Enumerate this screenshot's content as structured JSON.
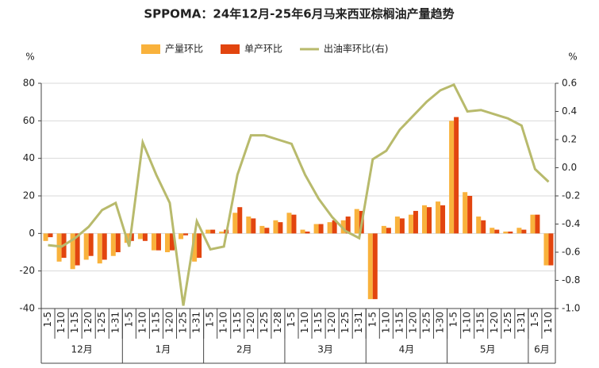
{
  "chart_data": {
    "type": "bar_line",
    "title": "SPPOMA：24年12月-25年6月马来西亚棕榈油产量趋势",
    "y_label": "%",
    "y2_label": "%",
    "groups": [
      {
        "name": "12月",
        "categories": [
          "1-5",
          "1-10",
          "1-15",
          "1-20",
          "1-25",
          "1-31"
        ]
      },
      {
        "name": "1月",
        "categories": [
          "1-5",
          "1-10",
          "1-15",
          "1-20",
          "1-25",
          "1-31"
        ]
      },
      {
        "name": "2月",
        "categories": [
          "1-5",
          "1-10",
          "1-15",
          "1-20",
          "1-25",
          "1-28"
        ]
      },
      {
        "name": "3月",
        "categories": [
          "1-5",
          "1-10",
          "1-15",
          "1-20",
          "1-25",
          "1-31"
        ]
      },
      {
        "name": "4月",
        "categories": [
          "1-5",
          "1-10",
          "1-15",
          "1-20",
          "1-25",
          "1-30"
        ]
      },
      {
        "name": "5月",
        "categories": [
          "1-5",
          "1-10",
          "1-15",
          "1-20",
          "1-25",
          "1-31"
        ]
      },
      {
        "name": "6月",
        "categories": [
          "1-5",
          "1-10"
        ]
      }
    ],
    "series": [
      {
        "name": "产量环比",
        "type": "bar",
        "color": "#f9b23c",
        "values": [
          -4,
          -15,
          -19,
          -14,
          -16,
          -12,
          -5,
          -3,
          -9,
          -10,
          -3,
          -15,
          2,
          1,
          11,
          9,
          4,
          7,
          11,
          2,
          5,
          6,
          7,
          13,
          -35,
          4,
          9,
          10,
          15,
          17,
          60,
          22,
          9,
          3,
          1,
          3,
          10,
          -17
        ]
      },
      {
        "name": "单产环比",
        "type": "bar",
        "color": "#e2450f",
        "values": [
          -2,
          -13,
          -17,
          -12,
          -14,
          -10,
          -4,
          -4,
          -9,
          -9,
          -1,
          -13,
          2,
          2,
          14,
          8,
          3,
          6,
          10,
          1,
          5,
          7,
          9,
          12,
          -35,
          3,
          8,
          12,
          14,
          15,
          62,
          20,
          7,
          2,
          1,
          2,
          10,
          -17
        ]
      },
      {
        "name": "出油率环比(右)",
        "type": "line",
        "axis": "y2",
        "color": "#b8ba6c",
        "values": [
          -0.55,
          -0.56,
          -0.5,
          -0.42,
          -0.3,
          -0.25,
          -0.56,
          0.18,
          -0.05,
          -0.25,
          -0.98,
          -0.38,
          -0.58,
          -0.56,
          -0.05,
          0.23,
          0.23,
          0.2,
          0.17,
          -0.05,
          -0.22,
          -0.35,
          -0.45,
          -0.5,
          0.06,
          0.12,
          0.27,
          0.37,
          0.47,
          0.55,
          0.59,
          0.4,
          0.41,
          0.38,
          0.35,
          0.3,
          -0.01,
          -0.1
        ]
      }
    ],
    "ylim": [
      -40,
      80
    ],
    "yticks": [
      -40,
      -20,
      0,
      20,
      40,
      60,
      80
    ],
    "y2lim": [
      -1,
      0.6
    ],
    "y2ticks": [
      {
        "value": -1,
        "label": "-1.0"
      },
      -0.8,
      -0.6,
      -0.4,
      -0.2,
      {
        "value": 0,
        "label": "0.0"
      },
      0.2,
      0.4,
      0.6
    ],
    "grid": true
  }
}
